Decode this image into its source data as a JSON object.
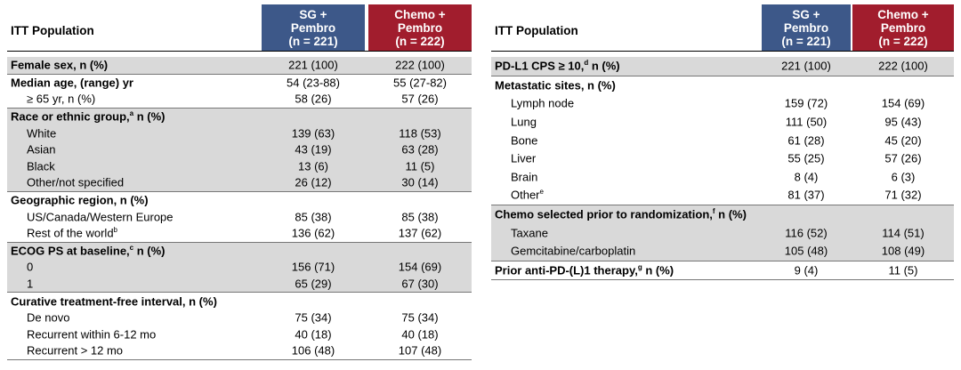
{
  "tables": [
    {
      "header": {
        "label": "ITT Population",
        "columns": [
          [
            "SG +",
            "Pembro",
            "(n = 221)"
          ],
          [
            "Chemo +",
            "Pembro",
            "(n = 222)"
          ]
        ]
      },
      "groups": [
        {
          "shaded": true,
          "rows": [
            {
              "label": "Female sex, n (%)",
              "values": [
                "221 (100)",
                "222 (100)"
              ]
            }
          ]
        },
        {
          "shaded": false,
          "rows": [
            {
              "label": "Median age, (range) yr",
              "values": [
                "54 (23-88)",
                "55 (27-82)"
              ]
            },
            {
              "label": "≥ 65 yr, n (%)",
              "values": [
                "58 (26)",
                "57 (26)"
              ]
            }
          ]
        },
        {
          "shaded": true,
          "rows": [
            {
              "label": "Race or ethnic group,",
              "sup": "a",
              "label_end": " n (%)"
            },
            {
              "label": "White",
              "values": [
                "139 (63)",
                "118 (53)"
              ]
            },
            {
              "label": "Asian",
              "values": [
                "43 (19)",
                "63 (28)"
              ]
            },
            {
              "label": "Black",
              "values": [
                "13 (6)",
                "11 (5)"
              ]
            },
            {
              "label": "Other/not specified",
              "values": [
                "26 (12)",
                "30 (14)"
              ]
            }
          ]
        },
        {
          "shaded": false,
          "rows": [
            {
              "label": "Geographic region, n (%)"
            },
            {
              "label": "US/Canada/Western Europe",
              "values": [
                "85 (38)",
                "85 (38)"
              ]
            },
            {
              "label": "Rest of the world",
              "sup": "b",
              "values": [
                "136 (62)",
                "137 (62)"
              ]
            }
          ]
        },
        {
          "shaded": true,
          "rows": [
            {
              "label": "ECOG PS at baseline,",
              "sup": "c",
              "label_end": " n (%)"
            },
            {
              "label": "0",
              "values": [
                "156 (71)",
                "154 (69)"
              ]
            },
            {
              "label": "1",
              "values": [
                "65 (29)",
                "67 (30)"
              ]
            }
          ]
        },
        {
          "shaded": false,
          "rows": [
            {
              "label": "Curative treatment-free interval, n (%)"
            },
            {
              "label": "De novo",
              "values": [
                "75 (34)",
                "75 (34)"
              ]
            },
            {
              "label": "Recurrent within 6-12 mo",
              "values": [
                "40 (18)",
                "40 (18)"
              ]
            },
            {
              "label": "Recurrent > 12 mo",
              "values": [
                "106 (48)",
                "107 (48)"
              ]
            }
          ]
        }
      ]
    },
    {
      "header": {
        "label": "ITT Population",
        "columns": [
          [
            "SG +",
            "Pembro",
            "(n = 221)"
          ],
          [
            "Chemo +",
            "Pembro",
            "(n = 222)"
          ]
        ]
      },
      "groups": [
        {
          "shaded": true,
          "rows": [
            {
              "label": "PD-L1 CPS ≥ 10,",
              "sup": "d",
              "label_end": " n (%)",
              "values": [
                "221 (100)",
                "222 (100)"
              ]
            }
          ]
        },
        {
          "shaded": false,
          "rows": [
            {
              "label": "Metastatic sites, n (%)"
            },
            {
              "label": "Lymph node",
              "values": [
                "159 (72)",
                "154 (69)"
              ]
            },
            {
              "label": "Lung",
              "values": [
                "111 (50)",
                "95 (43)"
              ]
            },
            {
              "label": "Bone",
              "values": [
                "61 (28)",
                "45 (20)"
              ]
            },
            {
              "label": "Liver",
              "values": [
                "55 (25)",
                "57 (26)"
              ]
            },
            {
              "label": "Brain",
              "values": [
                "8 (4)",
                "6 (3)"
              ]
            },
            {
              "label": "Other",
              "sup": "e",
              "values": [
                "81 (37)",
                "71 (32)"
              ]
            }
          ]
        },
        {
          "shaded": true,
          "rows": [
            {
              "label": "Chemo selected prior to randomization,",
              "sup": "f",
              "label_end": " n (%)"
            },
            {
              "label": "Taxane",
              "values": [
                "116 (52)",
                "114 (51)"
              ]
            },
            {
              "label": "Gemcitabine/carboplatin",
              "values": [
                "105 (48)",
                "108 (49)"
              ]
            }
          ]
        },
        {
          "shaded": false,
          "rows": [
            {
              "label": "Prior anti-PD-(L)1 therapy,",
              "sup": "g",
              "label_end": " n (%)",
              "values": [
                "9 (4)",
                "11 (5)"
              ]
            }
          ]
        }
      ]
    }
  ]
}
